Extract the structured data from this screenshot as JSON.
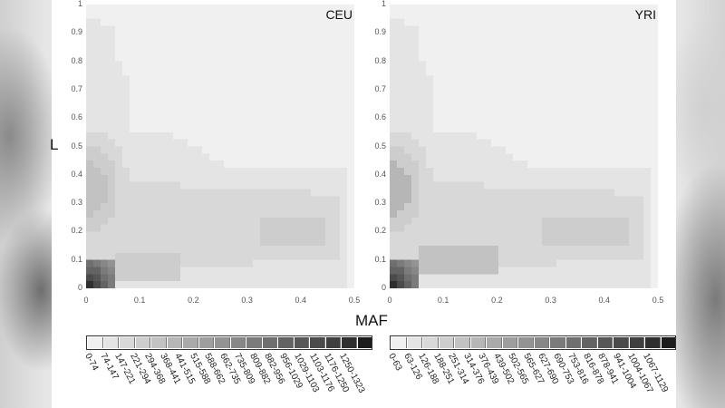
{
  "chart_data": [
    {
      "type": "heatmap",
      "title": "CEU",
      "xlabel": "MAF",
      "ylabel": "L",
      "xlim": [
        0,
        0.5
      ],
      "ylim": [
        0,
        1
      ],
      "x_ticks": [
        "0",
        "0.1",
        "0.2",
        "0.3",
        "0.4",
        "0.5"
      ],
      "y_ticks": [
        "0",
        "0.1",
        "0.2",
        "0.3",
        "0.4",
        "0.5",
        "0.6",
        "0.7",
        "0.8",
        "0.9",
        "1"
      ],
      "legend_bins": [
        "0-74",
        "74-147",
        "147-221",
        "221-294",
        "294-368",
        "368-441",
        "441-515",
        "515-588",
        "588-662",
        "662-735",
        "735-809",
        "809-882",
        "882-956",
        "956-1029",
        "1029-1103",
        "1103-1176",
        "1176-1250",
        "1250-1323"
      ],
      "grid": false,
      "legend_position": "bottom",
      "description": "Density of counts concentrated at MAF 0-0.05, L 0-0.1 (darkest, highest bins); secondary ridge at MAF<0.05, L~0.35; horizontal band along L~0.1-0.25 extending to MAF~0.5 with local peak near MAF 0.38-0.45, L~0.18."
    },
    {
      "type": "heatmap",
      "title": "YRI",
      "xlabel": "MAF",
      "ylabel": "L",
      "xlim": [
        0,
        0.5
      ],
      "ylim": [
        0,
        1
      ],
      "x_ticks": [
        "0",
        "0.1",
        "0.2",
        "0.3",
        "0.4",
        "0.5"
      ],
      "y_ticks": [
        "0",
        "0.1",
        "0.2",
        "0.3",
        "0.4",
        "0.5",
        "0.6",
        "0.7",
        "0.8",
        "0.9",
        "1"
      ],
      "legend_bins": [
        "0-63",
        "63-126",
        "126-188",
        "188-251",
        "251-314",
        "314-376",
        "376-439",
        "439-502",
        "502-565",
        "565-627",
        "627-690",
        "690-753",
        "753-816",
        "816-878",
        "878-941",
        "941-1004",
        "1004-1067",
        "1067-1129"
      ],
      "grid": false,
      "legend_position": "bottom",
      "description": "Highest density at MAF 0-0.05, L 0-0.1; secondary peak at MAF<0.05, L~0.35; broad band L~0.05-0.3 extending across MAF to ~0.46, darker ridge around L~0.15-0.25 for MAF 0.28-0.46."
    }
  ],
  "plots": [
    {
      "title": "CEU"
    },
    {
      "title": "YRI"
    }
  ],
  "axes": {
    "xlabel": "MAF",
    "ylabel": "L",
    "x_ticks": [
      "0",
      "0.1",
      "0.2",
      "0.3",
      "0.4",
      "0.5"
    ],
    "y_ticks": [
      "0",
      "0.1",
      "0.2",
      "0.3",
      "0.4",
      "0.5",
      "0.6",
      "0.7",
      "0.8",
      "0.9",
      "1"
    ]
  },
  "legends": [
    {
      "bins": [
        "0-74",
        "74-147",
        "147-221",
        "221-294",
        "294-368",
        "368-441",
        "441-515",
        "515-588",
        "588-662",
        "662-735",
        "735-809",
        "809-882",
        "882-956",
        "956-1029",
        "1029-1103",
        "1103-1176",
        "1176-1250",
        "1250-1323"
      ]
    },
    {
      "bins": [
        "0-63",
        "63-126",
        "126-188",
        "188-251",
        "251-314",
        "314-376",
        "376-439",
        "439-502",
        "502-565",
        "565-627",
        "627-690",
        "690-753",
        "753-816",
        "816-878",
        "878-941",
        "941-1004",
        "1004-1067",
        "1067-1129"
      ]
    }
  ],
  "colors": {
    "bin_gray_scale": [
      "#f0f0f0",
      "#e4e4e4",
      "#d8d8d8",
      "#cdcdcd",
      "#c2c2c2",
      "#b6b6b6",
      "#aaaaaa",
      "#9e9e9e",
      "#939393",
      "#878787",
      "#7b7b7b",
      "#6f6f6f",
      "#636363",
      "#575757",
      "#4b4b4b",
      "#3f3f3f",
      "#2f2f2f",
      "#1c1c1c"
    ]
  }
}
